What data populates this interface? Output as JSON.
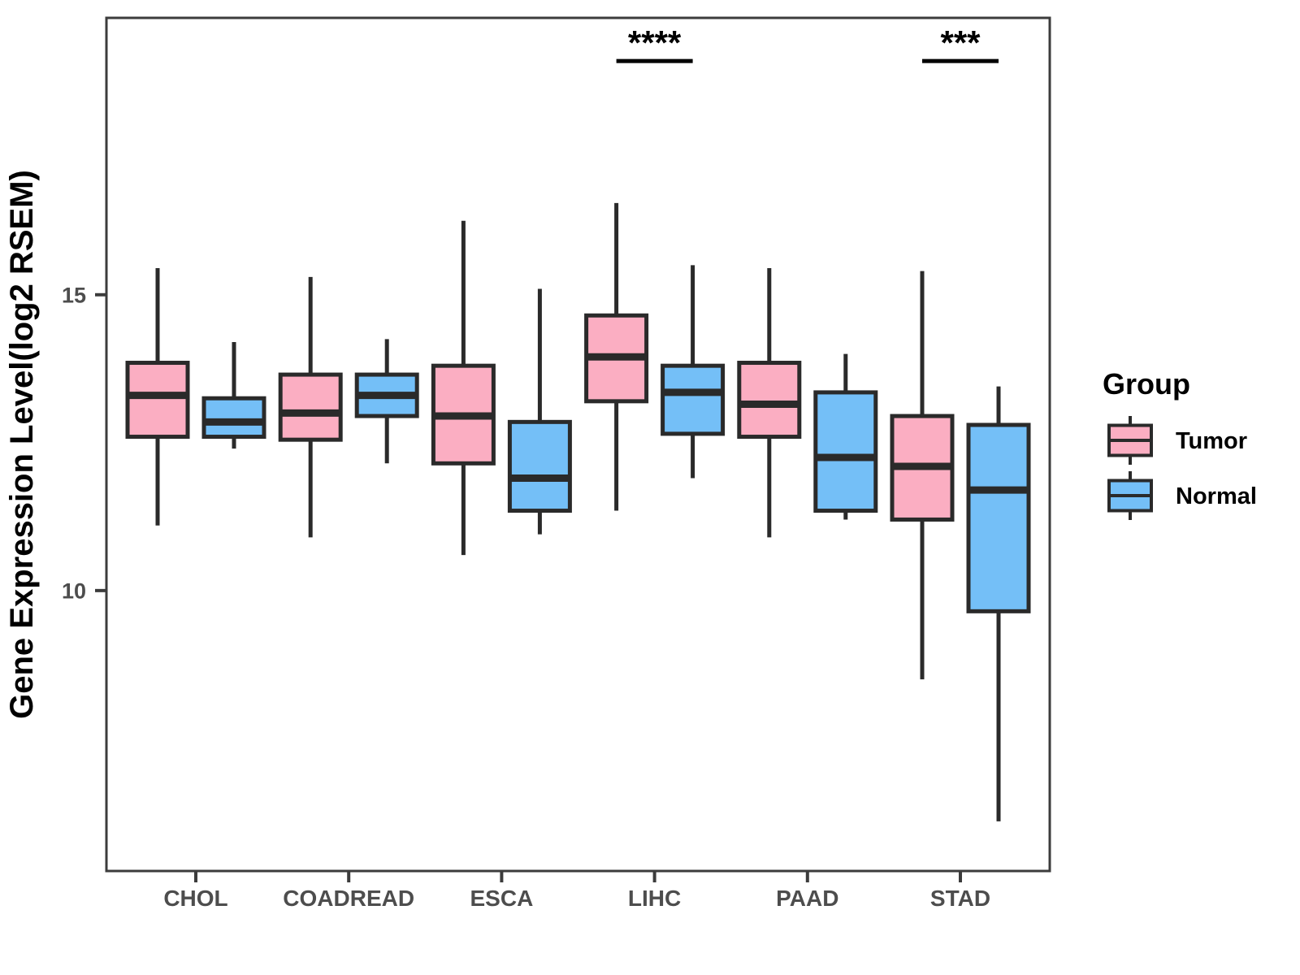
{
  "chart_data": {
    "type": "boxplot",
    "title": "",
    "ylabel": "Gene Expression Level(log2 RSEM)",
    "xlabel": "",
    "categories": [
      "CHOL",
      "COADREAD",
      "ESCA",
      "LIHC",
      "PAAD",
      "STAD"
    ],
    "ylim": [
      5.26,
      19.68
    ],
    "yticks": [
      10,
      15
    ],
    "grid": false,
    "legend": {
      "title": "Group",
      "position": "right",
      "entries": [
        "Tumor",
        "Normal"
      ]
    },
    "colors": {
      "tumor_fill": "#FBAEC2",
      "normal_fill": "#74BFF7",
      "line": "#2A2A2A",
      "panel_border": "#3C3C3C",
      "tick_text": "#4D4D4D",
      "annotation": "#000000"
    },
    "series": [
      {
        "name": "Tumor",
        "fill": "#FBAEC2",
        "boxes": [
          {
            "category": "CHOL",
            "whisker_low": 11.1,
            "q1": 12.6,
            "median": 13.3,
            "q3": 13.85,
            "whisker_high": 15.45
          },
          {
            "category": "COADREAD",
            "whisker_low": 10.9,
            "q1": 12.55,
            "median": 13.0,
            "q3": 13.65,
            "whisker_high": 15.3
          },
          {
            "category": "ESCA",
            "whisker_low": 10.6,
            "q1": 12.15,
            "median": 12.95,
            "q3": 13.8,
            "whisker_high": 16.25
          },
          {
            "category": "LIHC",
            "whisker_low": 11.35,
            "q1": 13.2,
            "median": 13.95,
            "q3": 14.65,
            "whisker_high": 16.55
          },
          {
            "category": "PAAD",
            "whisker_low": 10.9,
            "q1": 12.6,
            "median": 13.15,
            "q3": 13.85,
            "whisker_high": 15.45
          },
          {
            "category": "STAD",
            "whisker_low": 8.5,
            "q1": 11.2,
            "median": 12.1,
            "q3": 12.95,
            "whisker_high": 15.4
          }
        ]
      },
      {
        "name": "Normal",
        "fill": "#74BFF7",
        "boxes": [
          {
            "category": "CHOL",
            "whisker_low": 12.4,
            "q1": 12.6,
            "median": 12.85,
            "q3": 13.25,
            "whisker_high": 14.2
          },
          {
            "category": "COADREAD",
            "whisker_low": 12.15,
            "q1": 12.95,
            "median": 13.3,
            "q3": 13.65,
            "whisker_high": 14.25
          },
          {
            "category": "ESCA",
            "whisker_low": 10.95,
            "q1": 11.35,
            "median": 11.9,
            "q3": 12.85,
            "whisker_high": 15.1
          },
          {
            "category": "LIHC",
            "whisker_low": 11.9,
            "q1": 12.65,
            "median": 13.35,
            "q3": 13.8,
            "whisker_high": 15.5
          },
          {
            "category": "PAAD",
            "whisker_low": 11.2,
            "q1": 11.35,
            "median": 12.25,
            "q3": 13.35,
            "whisker_high": 14.0
          },
          {
            "category": "STAD",
            "whisker_low": 6.1,
            "q1": 9.65,
            "median": 11.7,
            "q3": 12.8,
            "whisker_high": 13.45
          }
        ]
      }
    ],
    "annotations": [
      {
        "category": "LIHC",
        "label": "****",
        "y": 18.95
      },
      {
        "category": "STAD",
        "label": "***",
        "y": 18.95
      }
    ]
  }
}
